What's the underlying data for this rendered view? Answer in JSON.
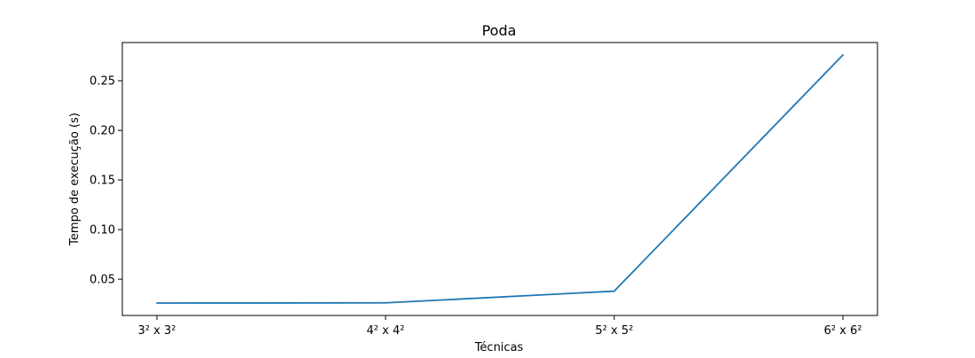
{
  "chart_data": {
    "type": "line",
    "title": "Poda",
    "xlabel": "Técnicas",
    "ylabel": "Tempo de execução (s)",
    "categories": [
      "3² x 3²",
      "4² x 4²",
      "5² x 5²",
      "6² x 6²"
    ],
    "series": [
      {
        "values": [
          0.026,
          0.0262,
          0.038,
          0.276
        ],
        "color": "#1f77b4"
      }
    ],
    "yticks": [
      0.05,
      0.1,
      0.15,
      0.2,
      0.25
    ],
    "ytick_labels": [
      "0.05",
      "0.10",
      "0.15",
      "0.20",
      "0.25"
    ],
    "ylim": [
      0.0135,
      0.2885
    ],
    "grid": false,
    "legend": "none"
  }
}
